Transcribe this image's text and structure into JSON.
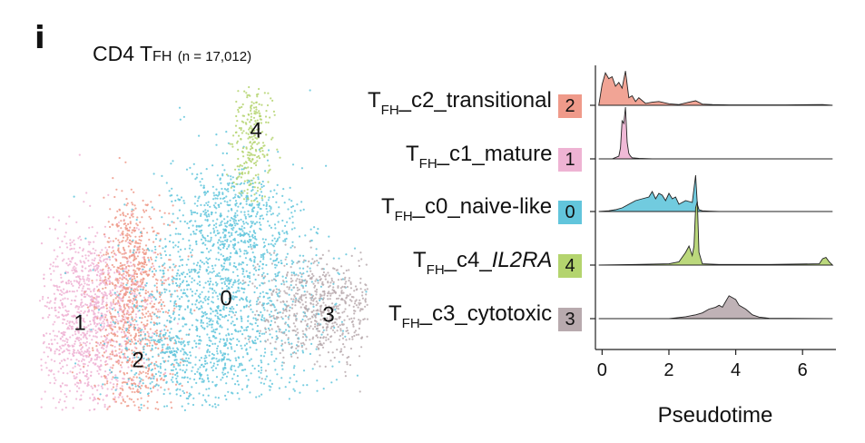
{
  "panel_letter": "i",
  "umap": {
    "title_main": "CD4 T",
    "title_sub": "FH",
    "title_n": "(n = 17,012)"
  },
  "clusters": [
    {
      "id": "2",
      "prefix": "T",
      "sub": "FH",
      "suffix_plain": "_c2_transitional",
      "suffix_italic": "",
      "color": "#ef9a8a"
    },
    {
      "id": "1",
      "prefix": "T",
      "sub": "FH",
      "suffix_plain": "_c1_mature",
      "suffix_italic": "",
      "color": "#eeb3d3"
    },
    {
      "id": "0",
      "prefix": "T",
      "sub": "FH",
      "suffix_plain": "_c0_naive-like",
      "suffix_italic": "",
      "color": "#62c5dc"
    },
    {
      "id": "4",
      "prefix": "T",
      "sub": "FH",
      "suffix_plain": "_c4_",
      "suffix_italic": "IL2RA",
      "color": "#b4d46e"
    },
    {
      "id": "3",
      "prefix": "T",
      "sub": "FH",
      "suffix_plain": "_c3_cytotoxic",
      "suffix_italic": "",
      "color": "#b8aaae"
    }
  ],
  "chart_data": [
    {
      "type": "scatter",
      "title": "CD4 TFH (n = 17,012)",
      "cluster_labels": [
        "1",
        "2",
        "0",
        "3",
        "4"
      ]
    },
    {
      "type": "area",
      "xlabel": "Pseudotime",
      "xticks": [
        0,
        2,
        4,
        6
      ],
      "xlim": [
        -0.2,
        7.0
      ],
      "series": [
        {
          "name": "2",
          "x": [
            -0.1,
            0.0,
            0.1,
            0.2,
            0.3,
            0.4,
            0.5,
            0.6,
            0.7,
            0.8,
            0.9,
            1.0,
            1.1,
            1.3,
            1.5,
            1.7,
            2.0,
            2.3,
            2.6,
            2.8,
            3.0,
            3.3,
            3.8,
            4.5,
            5.5,
            6.6,
            6.9
          ],
          "y": [
            0,
            0.55,
            0.85,
            0.7,
            0.75,
            0.5,
            0.6,
            0.45,
            0.9,
            0.2,
            0.25,
            0.1,
            0.2,
            0.05,
            0.08,
            0.1,
            0.04,
            0.02,
            0.08,
            0.12,
            0.03,
            0.02,
            0.01,
            0.01,
            0.01,
            0.02,
            0
          ]
        },
        {
          "name": "1",
          "x": [
            -0.1,
            0.3,
            0.5,
            0.55,
            0.6,
            0.65,
            0.7,
            0.75,
            0.8,
            0.85,
            0.9,
            1.1,
            1.5,
            3.0,
            6.9
          ],
          "y": [
            0,
            0,
            0.05,
            0.2,
            0.7,
            0.65,
            0.95,
            0.3,
            0.1,
            0.05,
            0.02,
            0.01,
            0,
            0,
            0
          ]
        },
        {
          "name": "0",
          "x": [
            -0.1,
            0.2,
            0.4,
            0.6,
            0.8,
            1.0,
            1.2,
            1.4,
            1.5,
            1.6,
            1.7,
            1.8,
            1.9,
            2.0,
            2.1,
            2.2,
            2.3,
            2.5,
            2.7,
            2.8,
            2.85,
            2.9,
            3.0,
            3.2,
            3.5,
            6.9
          ],
          "y": [
            0,
            0.02,
            0.05,
            0.1,
            0.2,
            0.3,
            0.35,
            0.4,
            0.55,
            0.35,
            0.5,
            0.45,
            0.3,
            0.5,
            0.35,
            0.4,
            0.2,
            0.3,
            0.25,
            1.0,
            0.2,
            0.05,
            0.02,
            0.01,
            0,
            0
          ]
        },
        {
          "name": "4",
          "x": [
            -0.1,
            1.0,
            2.0,
            2.3,
            2.5,
            2.6,
            2.7,
            2.75,
            2.8,
            2.85,
            2.9,
            3.0,
            3.5,
            5.0,
            6.5,
            6.6,
            6.7,
            6.8,
            6.9
          ],
          "y": [
            0,
            0.01,
            0.02,
            0.05,
            0.2,
            0.3,
            0.15,
            0.3,
            0.9,
            1.0,
            0.2,
            0.02,
            0.01,
            0.01,
            0.02,
            0.1,
            0.12,
            0.05,
            0
          ]
        },
        {
          "name": "3",
          "x": [
            -0.1,
            2.0,
            2.2,
            2.5,
            2.8,
            3.0,
            3.2,
            3.4,
            3.5,
            3.6,
            3.7,
            3.8,
            3.9,
            4.0,
            4.1,
            4.3,
            4.5,
            4.7,
            5.0,
            6.9
          ],
          "y": [
            0,
            0,
            0.02,
            0.05,
            0.1,
            0.15,
            0.25,
            0.3,
            0.35,
            0.3,
            0.45,
            0.6,
            0.55,
            0.5,
            0.35,
            0.25,
            0.1,
            0.04,
            0.01,
            0
          ]
        }
      ]
    }
  ]
}
